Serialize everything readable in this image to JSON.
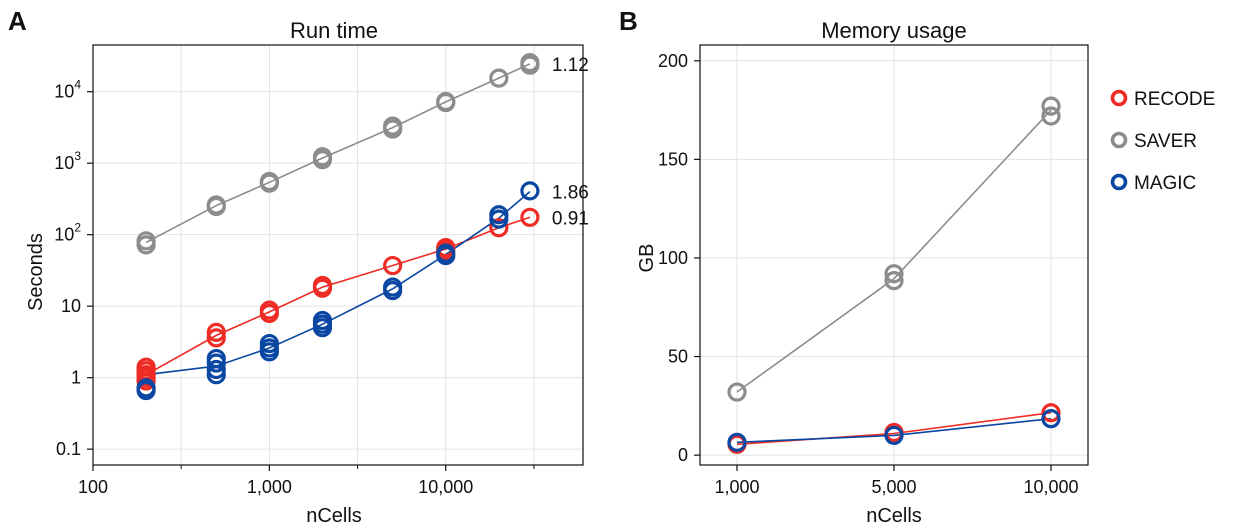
{
  "panels": [
    {
      "letter": "A"
    },
    {
      "letter": "B"
    }
  ],
  "colors": {
    "RECODE": "#ee2b24",
    "SAVER": "#8c8c8c",
    "MAGIC": "#0a47a3"
  },
  "chart_data": [
    {
      "type": "scatter",
      "title": "Run time",
      "xlabel": "nCells",
      "ylabel": "Seconds",
      "x_scale": "log",
      "y_scale": "log",
      "xlim": [
        100,
        60000
      ],
      "ylim": [
        0.06,
        45000
      ],
      "grid": true,
      "x_ticks": [
        {
          "value": 100,
          "label": "100"
        },
        {
          "value": 1000,
          "label": "1,000"
        },
        {
          "value": 10000,
          "label": "10,000"
        }
      ],
      "y_ticks": [
        {
          "value": 0.1,
          "label": "0.1",
          "sup": ""
        },
        {
          "value": 1,
          "label": "1",
          "sup": ""
        },
        {
          "value": 10,
          "label": "10",
          "sup": ""
        },
        {
          "value": 100,
          "label": "10",
          "sup": "2"
        },
        {
          "value": 1000,
          "label": "10",
          "sup": "3"
        },
        {
          "value": 10000,
          "label": "10",
          "sup": "4"
        }
      ],
      "series": [
        {
          "name": "SAVER",
          "end_label": "1.12",
          "line": [
            [
              200,
              78
            ],
            [
              500,
              255
            ],
            [
              1000,
              540
            ],
            [
              2000,
              1180
            ],
            [
              5000,
              3150
            ],
            [
              10000,
              7200
            ],
            [
              20000,
              15500
            ],
            [
              30000,
              24500
            ]
          ],
          "points": [
            [
              200,
              82
            ],
            [
              200,
              72
            ],
            [
              500,
              260
            ],
            [
              500,
              248
            ],
            [
              1000,
              555
            ],
            [
              1000,
              525
            ],
            [
              2000,
              1230
            ],
            [
              2000,
              1120
            ],
            [
              5000,
              3300
            ],
            [
              5000,
              3000
            ],
            [
              10000,
              7300
            ],
            [
              10000,
              7050
            ],
            [
              20000,
              15500
            ],
            [
              30000,
              25500
            ],
            [
              30000,
              23500
            ]
          ]
        },
        {
          "name": "RECODE",
          "end_label": "0.91",
          "line": [
            [
              200,
              1.1
            ],
            [
              500,
              3.9
            ],
            [
              1000,
              8.3
            ],
            [
              2000,
              18.5
            ],
            [
              5000,
              37
            ],
            [
              10000,
              63
            ],
            [
              20000,
              125
            ],
            [
              30000,
              175
            ]
          ],
          "points": [
            [
              200,
              1.4
            ],
            [
              200,
              1.25
            ],
            [
              200,
              1.1
            ],
            [
              200,
              1.0
            ],
            [
              200,
              0.9
            ],
            [
              500,
              4.3
            ],
            [
              500,
              3.6
            ],
            [
              1000,
              8.8
            ],
            [
              1000,
              7.9
            ],
            [
              2000,
              19.5
            ],
            [
              2000,
              17.8
            ],
            [
              5000,
              37
            ],
            [
              10000,
              66
            ],
            [
              10000,
              60
            ],
            [
              20000,
              125
            ],
            [
              30000,
              175
            ]
          ]
        },
        {
          "name": "MAGIC",
          "end_label": "1.86",
          "line": [
            [
              200,
              1.1
            ],
            [
              500,
              1.45
            ],
            [
              1000,
              2.6
            ],
            [
              2000,
              5.6
            ],
            [
              5000,
              17.5
            ],
            [
              10000,
              53
            ],
            [
              20000,
              170
            ],
            [
              30000,
              400
            ]
          ],
          "points": [
            [
              200,
              0.72
            ],
            [
              200,
              0.66
            ],
            [
              500,
              1.85
            ],
            [
              500,
              1.6
            ],
            [
              500,
              1.3
            ],
            [
              500,
              1.1
            ],
            [
              1000,
              3.0
            ],
            [
              1000,
              2.6
            ],
            [
              1000,
              2.3
            ],
            [
              2000,
              6.3
            ],
            [
              2000,
              5.6
            ],
            [
              2000,
              5.0
            ],
            [
              5000,
              18.5
            ],
            [
              5000,
              16.5
            ],
            [
              10000,
              55
            ],
            [
              10000,
              51
            ],
            [
              20000,
              190
            ],
            [
              20000,
              165
            ],
            [
              30000,
              410
            ]
          ]
        }
      ]
    },
    {
      "type": "scatter",
      "title": "Memory usage",
      "xlabel": "nCells",
      "ylabel": "GB",
      "x_scale": "linear-categorical",
      "xlim": [
        700,
        11200
      ],
      "ylim": [
        -5,
        208
      ],
      "grid": true,
      "x_ticks": [
        {
          "value": 1000,
          "label": "1,000"
        },
        {
          "value": 5000,
          "label": "5,000"
        },
        {
          "value": 10000,
          "label": "10,000"
        }
      ],
      "y_ticks": [
        {
          "value": 0,
          "label": "0"
        },
        {
          "value": 50,
          "label": "50"
        },
        {
          "value": 100,
          "label": "100"
        },
        {
          "value": 150,
          "label": "150"
        },
        {
          "value": 200,
          "label": "200"
        }
      ],
      "legend_position": "right",
      "series": [
        {
          "name": "RECODE",
          "line": [
            [
              1000,
              5.5
            ],
            [
              5000,
              11
            ],
            [
              10000,
              21.5
            ]
          ],
          "points": [
            [
              1000,
              5.5
            ],
            [
              5000,
              11.5
            ],
            [
              10000,
              21.5
            ]
          ]
        },
        {
          "name": "SAVER",
          "line": [
            [
              1000,
              32
            ],
            [
              5000,
              89.5
            ],
            [
              10000,
              175
            ]
          ],
          "points": [
            [
              1000,
              32
            ],
            [
              5000,
              88.5
            ],
            [
              5000,
              92
            ],
            [
              10000,
              172
            ],
            [
              10000,
              177
            ]
          ]
        },
        {
          "name": "MAGIC",
          "line": [
            [
              1000,
              6.5
            ],
            [
              5000,
              10
            ],
            [
              10000,
              18.5
            ]
          ],
          "points": [
            [
              1000,
              6.5
            ],
            [
              5000,
              10
            ],
            [
              10000,
              18.5
            ]
          ]
        }
      ]
    }
  ]
}
